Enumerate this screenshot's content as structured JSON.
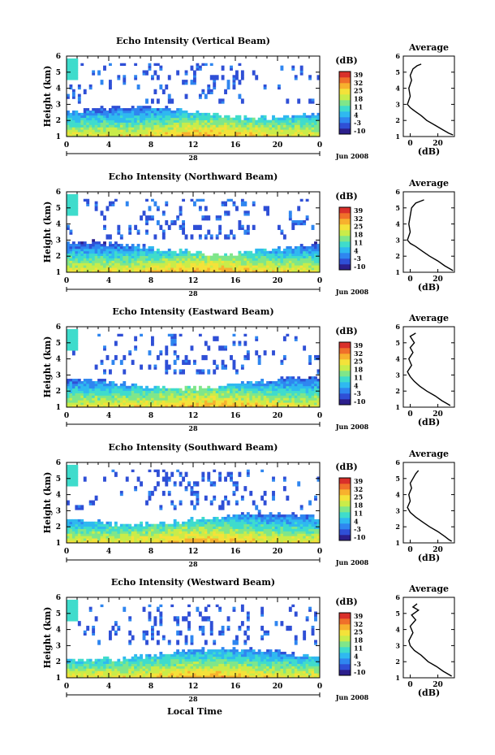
{
  "figure": {
    "xlabel": "Local Time",
    "date_label": "Jun 2008",
    "day_label": "28"
  },
  "colorbar": {
    "unit": "(dB)",
    "ticks": [
      "39",
      "32",
      "25",
      "18",
      "11",
      "4",
      "-3",
      "-10"
    ],
    "colors": [
      "#2c1f8c",
      "#2f4fd6",
      "#2f86f0",
      "#2fb9f0",
      "#3fdccc",
      "#7fe68a",
      "#c9ec4a",
      "#f4e23a",
      "#f7b12e",
      "#f0702a",
      "#d9302a"
    ]
  },
  "chart_data": [
    {
      "type": "heatmap",
      "title": "Echo Intensity (Vertical Beam)",
      "ylabel": "Height (km)",
      "xlim": [
        0,
        24
      ],
      "ylim": [
        1,
        6
      ],
      "x_ticks": [
        "0",
        "4",
        "8",
        "12",
        "16",
        "20",
        "0"
      ],
      "y_ticks": [
        "1",
        "2",
        "3",
        "4",
        "5",
        "6"
      ],
      "clim": [
        -10,
        39
      ]
    },
    {
      "type": "line",
      "title": "Average",
      "xlabel": "(dB)",
      "x_ticks": [
        "0",
        "20"
      ],
      "xlim": [
        -5,
        32
      ],
      "ylim": [
        1,
        6
      ],
      "x": [
        8,
        5,
        2,
        0,
        1,
        -1,
        0,
        -2,
        0,
        3,
        8,
        12,
        18,
        24,
        28,
        31
      ],
      "y": [
        5.5,
        5.4,
        5.2,
        4.8,
        4.5,
        4.0,
        3.5,
        3.0,
        2.8,
        2.6,
        2.3,
        2.0,
        1.7,
        1.4,
        1.2,
        1.1
      ]
    },
    {
      "type": "heatmap",
      "title": "Echo Intensity (Northward Beam)",
      "ylabel": "Height (km)",
      "xlim": [
        0,
        24
      ],
      "ylim": [
        1,
        6
      ],
      "x_ticks": [
        "0",
        "4",
        "8",
        "12",
        "16",
        "20",
        "0"
      ],
      "y_ticks": [
        "1",
        "2",
        "3",
        "4",
        "5",
        "6"
      ],
      "clim": [
        -10,
        39
      ]
    },
    {
      "type": "line",
      "title": "Average",
      "xlabel": "(dB)",
      "x_ticks": [
        "0",
        "20"
      ],
      "xlim": [
        -5,
        32
      ],
      "ylim": [
        1,
        6
      ],
      "x": [
        10,
        7,
        4,
        1,
        0,
        -1,
        0,
        -2,
        0,
        4,
        9,
        14,
        20,
        25,
        29,
        31
      ],
      "y": [
        5.5,
        5.4,
        5.3,
        5.0,
        4.5,
        4.0,
        3.5,
        3.0,
        2.8,
        2.6,
        2.3,
        2.0,
        1.7,
        1.4,
        1.2,
        1.1
      ]
    },
    {
      "type": "heatmap",
      "title": "Echo Intensity (Eastward Beam)",
      "ylabel": "Height (km)",
      "xlim": [
        0,
        24
      ],
      "ylim": [
        1,
        6
      ],
      "x_ticks": [
        "0",
        "4",
        "8",
        "12",
        "16",
        "20",
        "0"
      ],
      "y_ticks": [
        "1",
        "2",
        "3",
        "4",
        "5",
        "6"
      ],
      "clim": [
        -10,
        39
      ]
    },
    {
      "type": "line",
      "title": "Average",
      "xlabel": "(dB)",
      "x_ticks": [
        "0",
        "20"
      ],
      "xlim": [
        -5,
        32
      ],
      "ylim": [
        1,
        6
      ],
      "x": [
        4,
        0,
        3,
        0,
        2,
        -1,
        1,
        -2,
        0,
        3,
        7,
        12,
        18,
        23,
        27,
        29
      ],
      "y": [
        5.6,
        5.4,
        5.0,
        4.7,
        4.4,
        4.0,
        3.6,
        3.2,
        2.9,
        2.6,
        2.3,
        2.0,
        1.7,
        1.4,
        1.2,
        1.1
      ]
    },
    {
      "type": "heatmap",
      "title": "Echo Intensity (Southward Beam)",
      "ylabel": "Height (km)",
      "xlim": [
        0,
        24
      ],
      "ylim": [
        1,
        6
      ],
      "x_ticks": [
        "0",
        "4",
        "8",
        "12",
        "16",
        "20",
        "0"
      ],
      "y_ticks": [
        "1",
        "2",
        "3",
        "4",
        "5",
        "6"
      ],
      "clim": [
        -10,
        39
      ]
    },
    {
      "type": "line",
      "title": "Average",
      "xlabel": "(dB)",
      "x_ticks": [
        "0",
        "20"
      ],
      "xlim": [
        -5,
        32
      ],
      "ylim": [
        1,
        6
      ],
      "x": [
        6,
        4,
        2,
        0,
        1,
        -1,
        0,
        -2,
        0,
        4,
        9,
        14,
        20,
        25,
        28,
        30
      ],
      "y": [
        5.5,
        5.3,
        5.0,
        4.7,
        4.4,
        4.0,
        3.6,
        3.2,
        2.9,
        2.6,
        2.3,
        2.0,
        1.7,
        1.4,
        1.2,
        1.1
      ]
    },
    {
      "type": "heatmap",
      "title": "Echo Intensity (Westward Beam)",
      "ylabel": "Height (km)",
      "xlim": [
        0,
        24
      ],
      "ylim": [
        1,
        6
      ],
      "x_ticks": [
        "0",
        "4",
        "8",
        "12",
        "16",
        "20",
        "0"
      ],
      "y_ticks": [
        "1",
        "2",
        "3",
        "4",
        "5",
        "6"
      ],
      "clim": [
        -10,
        39
      ]
    },
    {
      "type": "line",
      "title": "Average",
      "xlabel": "(dB)",
      "x_ticks": [
        "0",
        "20"
      ],
      "xlim": [
        -5,
        32
      ],
      "ylim": [
        1,
        6
      ],
      "x": [
        5,
        2,
        6,
        1,
        4,
        0,
        2,
        -1,
        0,
        3,
        8,
        13,
        19,
        24,
        28,
        30
      ],
      "y": [
        5.6,
        5.4,
        5.2,
        4.9,
        4.6,
        4.2,
        3.8,
        3.3,
        3.0,
        2.7,
        2.4,
        2.0,
        1.7,
        1.4,
        1.2,
        1.1
      ]
    }
  ]
}
